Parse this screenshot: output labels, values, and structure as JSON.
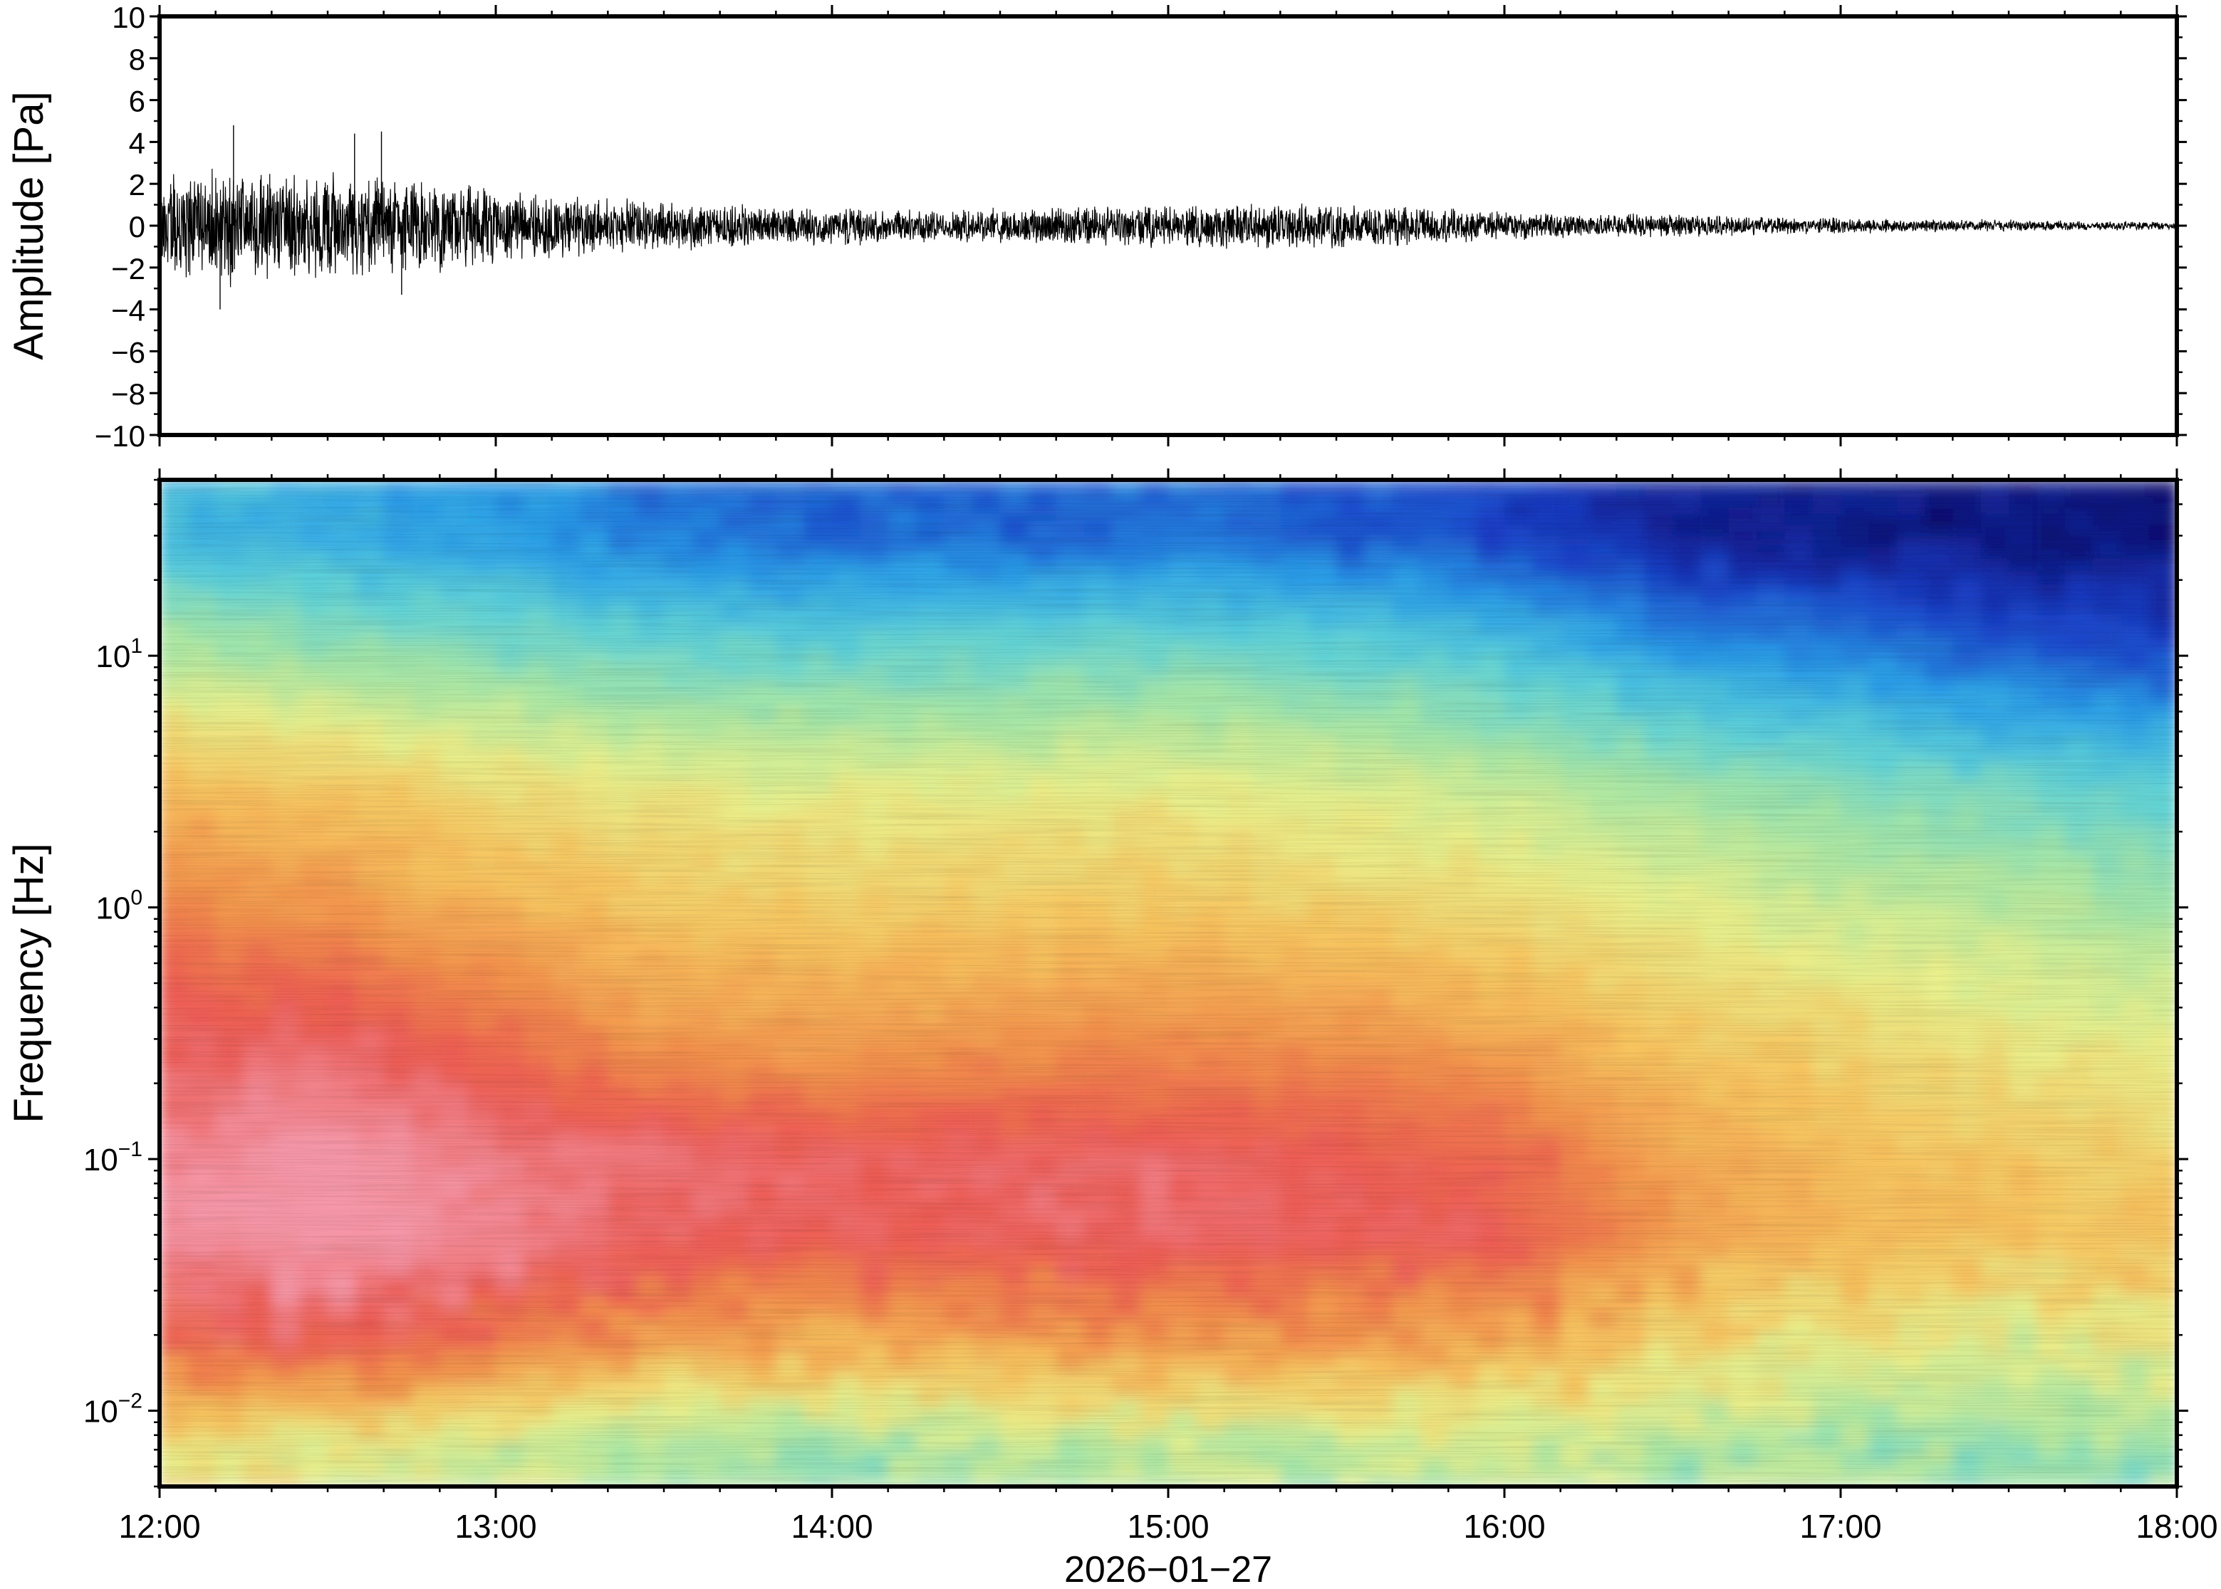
{
  "chart_data": [
    {
      "type": "line",
      "panel": "waveform",
      "ylabel": "Amplitude [Pa]",
      "ylim": [
        -10,
        10
      ],
      "y_ticks": [
        "10",
        "8",
        "6",
        "4",
        "2",
        "0",
        "−2",
        "−4",
        "−6",
        "−8",
        "−10"
      ],
      "y_tick_values": [
        10,
        8,
        6,
        4,
        2,
        0,
        -2,
        -4,
        -6,
        -8,
        -10
      ],
      "x_range": [
        "12:00",
        "18:00"
      ],
      "series": [
        {
          "x_hours": [
            12.0,
            12.25,
            12.5,
            12.75,
            13.0,
            13.25,
            13.5,
            13.75,
            14.0,
            14.25,
            14.5,
            14.75,
            15.0,
            15.25,
            15.5,
            15.75,
            16.0,
            16.25,
            16.5,
            16.75,
            17.0,
            17.25,
            17.5,
            17.75,
            18.0
          ],
          "envelope_upper": [
            3.0,
            2.8,
            2.8,
            2.4,
            1.9,
            1.5,
            1.3,
            1.1,
            0.9,
            0.8,
            0.9,
            1.0,
            1.1,
            1.2,
            1.2,
            1.0,
            0.8,
            0.6,
            0.6,
            0.5,
            0.4,
            0.35,
            0.3,
            0.25,
            0.2
          ],
          "envelope_lower": [
            -3.2,
            -3.0,
            -2.9,
            -2.5,
            -2.0,
            -1.6,
            -1.4,
            -1.1,
            -1.0,
            -0.9,
            -0.9,
            -1.0,
            -1.1,
            -1.2,
            -1.2,
            -1.0,
            -0.8,
            -0.6,
            -0.6,
            -0.5,
            -0.4,
            -0.35,
            -0.3,
            -0.25,
            -0.2
          ]
        }
      ],
      "peaks": [
        {
          "x_hour": 12.22,
          "y": 4.8
        },
        {
          "x_hour": 12.58,
          "y": 4.4
        },
        {
          "x_hour": 12.66,
          "y": 4.5
        },
        {
          "x_hour": 12.18,
          "y": -4.0
        },
        {
          "x_hour": 12.72,
          "y": -3.3
        }
      ]
    },
    {
      "type": "heatmap",
      "panel": "spectrogram",
      "ylabel": "Frequency [Hz]",
      "y_scale": "log",
      "ylim": [
        0.005,
        50
      ],
      "y_ticks": [
        {
          "value": 10,
          "base": "10",
          "exp": "1"
        },
        {
          "value": 1,
          "base": "10",
          "exp": "0"
        },
        {
          "value": 0.1,
          "base": "10",
          "exp": "−1"
        },
        {
          "value": 0.01,
          "base": "10",
          "exp": "−2"
        }
      ],
      "x_ticks": [
        "12:00",
        "13:00",
        "14:00",
        "15:00",
        "16:00",
        "17:00",
        "18:00"
      ],
      "x_tick_hours": [
        12,
        13,
        14,
        15,
        16,
        17,
        18
      ],
      "xlabel": "2026−01−27",
      "colormap": [
        "#0b0e6e",
        "#1a3ec8",
        "#2aa0e8",
        "#5ed2d8",
        "#a6e6a6",
        "#e9f08c",
        "#f7c45e",
        "#f2924c",
        "#ec5a52",
        "#f597a8"
      ],
      "columns_hours": [
        12.0,
        12.5,
        13.0,
        13.5,
        14.0,
        14.5,
        15.0,
        15.5,
        16.0,
        16.5,
        17.0,
        17.5,
        18.0
      ],
      "rows_freq_hz": [
        0.007,
        0.02,
        0.05,
        0.1,
        0.3,
        1,
        3,
        10,
        30
      ],
      "level_index": [
        [
          5.2,
          5.0,
          4.6,
          4.0,
          3.9,
          4.2,
          4.4,
          4.3,
          4.6,
          4.2,
          4.0,
          3.9,
          4.0
        ],
        [
          7.8,
          8.2,
          7.5,
          6.8,
          6.6,
          6.8,
          6.9,
          6.8,
          6.7,
          5.7,
          5.2,
          5.0,
          5.2
        ],
        [
          8.8,
          9.3,
          8.7,
          8.2,
          8.1,
          8.2,
          8.3,
          8.2,
          8.0,
          6.8,
          6.2,
          6.0,
          6.0
        ],
        [
          8.7,
          9.2,
          8.6,
          8.4,
          8.2,
          8.2,
          8.3,
          8.1,
          7.8,
          6.6,
          6.1,
          5.9,
          5.6
        ],
        [
          8.2,
          8.3,
          7.6,
          6.8,
          6.7,
          6.9,
          7.0,
          6.9,
          6.6,
          5.9,
          5.6,
          5.2,
          4.9
        ],
        [
          7.2,
          6.9,
          6.3,
          5.9,
          5.8,
          5.8,
          5.9,
          5.7,
          5.4,
          5.0,
          4.6,
          4.3,
          4.0
        ],
        [
          6.2,
          5.9,
          5.4,
          5.1,
          5.0,
          5.0,
          5.1,
          4.9,
          4.5,
          4.0,
          3.6,
          3.3,
          3.0
        ],
        [
          4.3,
          3.9,
          3.6,
          3.3,
          3.2,
          3.3,
          3.4,
          3.2,
          2.8,
          2.1,
          1.8,
          1.4,
          1.1
        ],
        [
          2.6,
          2.3,
          2.0,
          1.6,
          1.4,
          1.4,
          1.5,
          1.3,
          1.0,
          0.5,
          0.3,
          0.2,
          0.1
        ]
      ]
    }
  ]
}
